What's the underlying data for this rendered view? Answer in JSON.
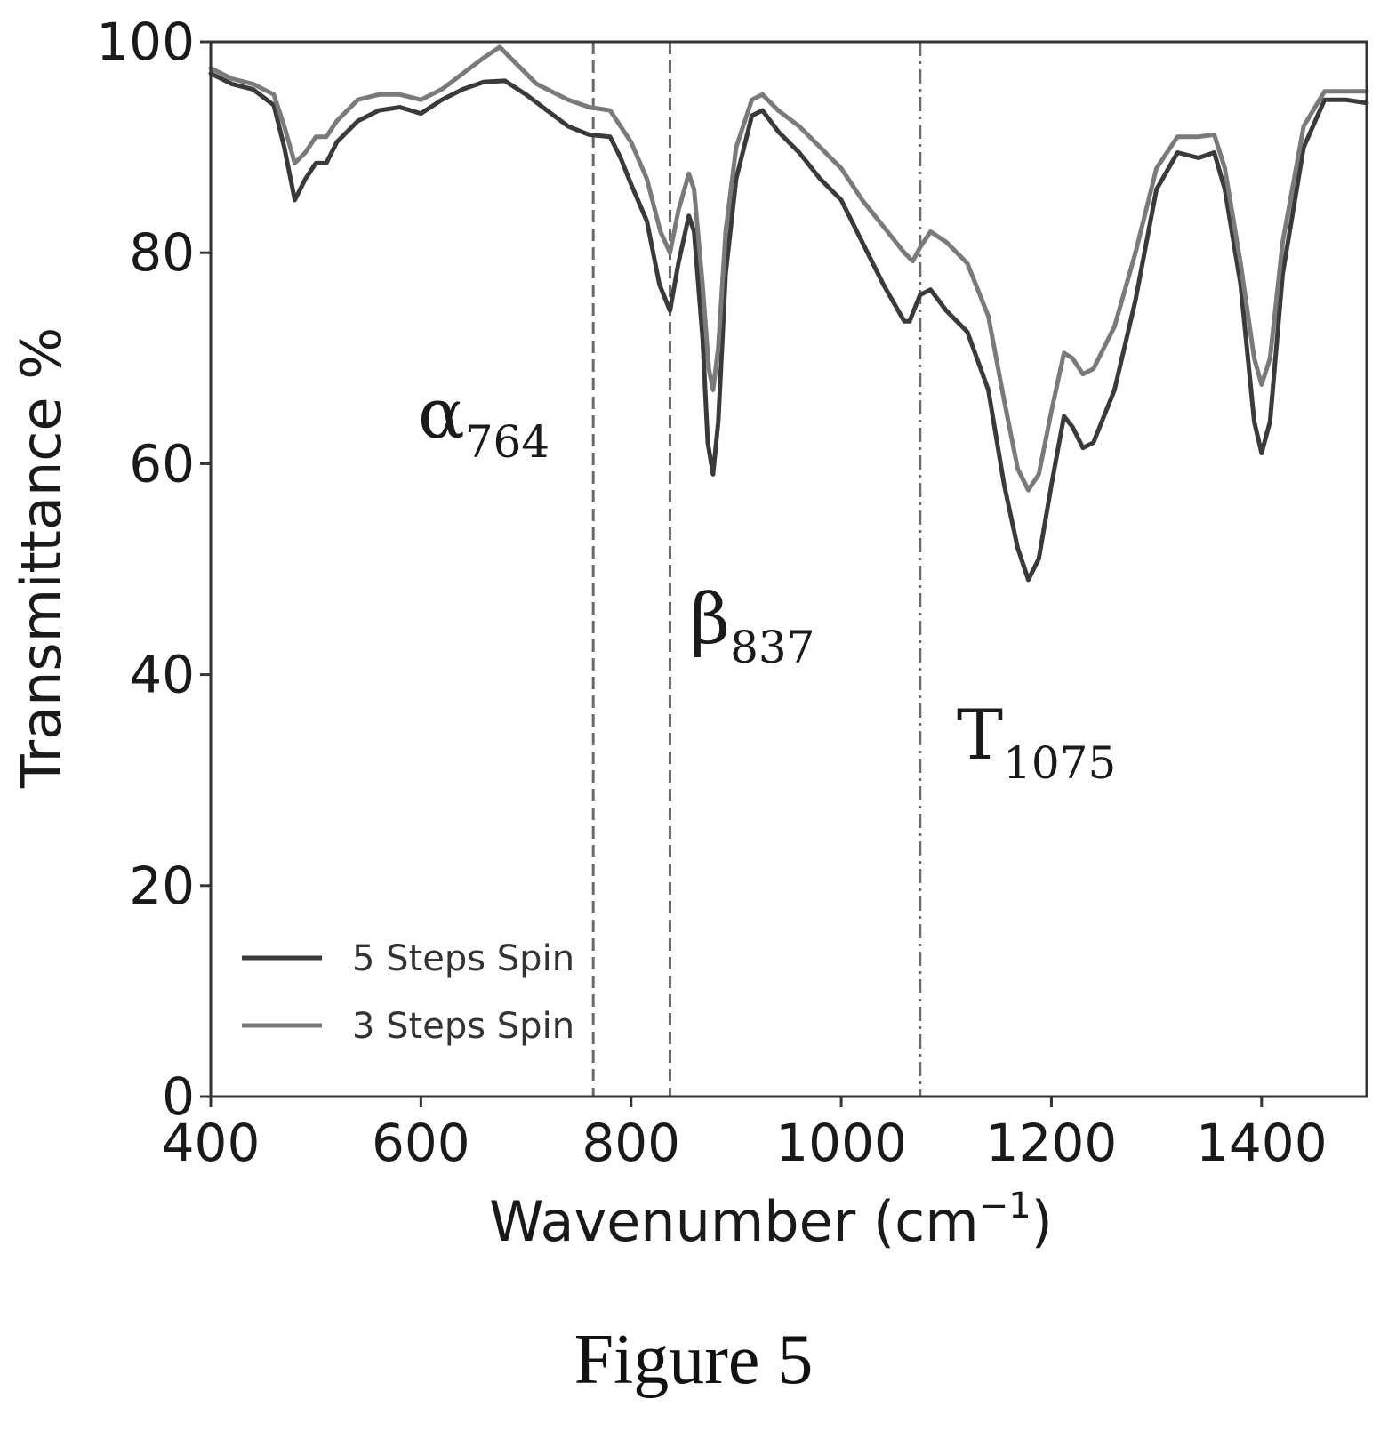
{
  "chart_data": {
    "type": "line",
    "xlabel": "Wavenumber (cm",
    "xlabel_sup": "−1",
    "xlabel_close": ")",
    "ylabel": "Transmittance %",
    "xlim": [
      400,
      1500
    ],
    "ylim": [
      0,
      100
    ],
    "xticks": [
      400,
      600,
      800,
      1000,
      1200,
      1400
    ],
    "yticks": [
      0,
      20,
      40,
      60,
      80,
      100
    ],
    "grid": false,
    "legend_position": "lower-left",
    "series": [
      {
        "name": "5 Steps Spin",
        "color": "#3a3a3a",
        "points": [
          [
            400,
            97
          ],
          [
            420,
            96
          ],
          [
            440,
            95.5
          ],
          [
            460,
            94
          ],
          [
            470,
            90
          ],
          [
            480,
            85
          ],
          [
            490,
            87
          ],
          [
            500,
            88.5
          ],
          [
            510,
            88.5
          ],
          [
            520,
            90.5
          ],
          [
            540,
            92.5
          ],
          [
            560,
            93.5
          ],
          [
            580,
            93.8
          ],
          [
            600,
            93.2
          ],
          [
            620,
            94.5
          ],
          [
            640,
            95.5
          ],
          [
            660,
            96.2
          ],
          [
            680,
            96.3
          ],
          [
            700,
            95
          ],
          [
            720,
            93.5
          ],
          [
            740,
            92
          ],
          [
            760,
            91.2
          ],
          [
            780,
            91
          ],
          [
            790,
            89
          ],
          [
            800,
            86.5
          ],
          [
            815,
            83
          ],
          [
            827,
            77
          ],
          [
            837,
            74.5
          ],
          [
            845,
            79
          ],
          [
            855,
            83.5
          ],
          [
            860,
            82
          ],
          [
            868,
            72
          ],
          [
            873,
            62
          ],
          [
            878,
            59
          ],
          [
            883,
            64
          ],
          [
            890,
            78
          ],
          [
            900,
            87
          ],
          [
            915,
            93
          ],
          [
            925,
            93.5
          ],
          [
            940,
            91.5
          ],
          [
            960,
            89.5
          ],
          [
            980,
            87
          ],
          [
            1000,
            85
          ],
          [
            1020,
            81
          ],
          [
            1040,
            77
          ],
          [
            1060,
            73.5
          ],
          [
            1065,
            73.5
          ],
          [
            1075,
            76
          ],
          [
            1085,
            76.5
          ],
          [
            1100,
            74.5
          ],
          [
            1120,
            72.5
          ],
          [
            1140,
            67
          ],
          [
            1155,
            58
          ],
          [
            1168,
            52
          ],
          [
            1178,
            49
          ],
          [
            1188,
            51
          ],
          [
            1200,
            58
          ],
          [
            1212,
            64.5
          ],
          [
            1220,
            63.5
          ],
          [
            1230,
            61.5
          ],
          [
            1240,
            62
          ],
          [
            1260,
            67
          ],
          [
            1280,
            75.5
          ],
          [
            1300,
            86
          ],
          [
            1320,
            89.5
          ],
          [
            1340,
            89
          ],
          [
            1355,
            89.5
          ],
          [
            1365,
            86
          ],
          [
            1380,
            77
          ],
          [
            1393,
            64
          ],
          [
            1400,
            61
          ],
          [
            1408,
            64
          ],
          [
            1420,
            78
          ],
          [
            1440,
            90
          ],
          [
            1460,
            94.5
          ],
          [
            1480,
            94.5
          ],
          [
            1500,
            94.2
          ]
        ]
      },
      {
        "name": "3 Steps Spin",
        "color": "#7a7a7a",
        "points": [
          [
            400,
            97.5
          ],
          [
            420,
            96.5
          ],
          [
            440,
            96
          ],
          [
            460,
            95
          ],
          [
            470,
            92
          ],
          [
            480,
            88.5
          ],
          [
            490,
            89.5
          ],
          [
            500,
            91
          ],
          [
            510,
            91
          ],
          [
            520,
            92.5
          ],
          [
            540,
            94.5
          ],
          [
            560,
            95
          ],
          [
            580,
            95
          ],
          [
            600,
            94.5
          ],
          [
            620,
            95.5
          ],
          [
            640,
            97
          ],
          [
            660,
            98.5
          ],
          [
            675,
            99.5
          ],
          [
            690,
            98
          ],
          [
            710,
            96
          ],
          [
            740,
            94.5
          ],
          [
            760,
            93.8
          ],
          [
            780,
            93.5
          ],
          [
            790,
            92
          ],
          [
            800,
            90.5
          ],
          [
            815,
            87
          ],
          [
            828,
            82
          ],
          [
            837,
            80
          ],
          [
            845,
            84
          ],
          [
            855,
            87.5
          ],
          [
            860,
            86
          ],
          [
            868,
            77
          ],
          [
            874,
            69
          ],
          [
            878,
            67
          ],
          [
            883,
            71
          ],
          [
            890,
            82
          ],
          [
            900,
            90
          ],
          [
            915,
            94.5
          ],
          [
            925,
            95
          ],
          [
            940,
            93.5
          ],
          [
            960,
            92
          ],
          [
            980,
            90
          ],
          [
            1000,
            88
          ],
          [
            1020,
            85
          ],
          [
            1040,
            82.5
          ],
          [
            1060,
            80
          ],
          [
            1068,
            79.2
          ],
          [
            1075,
            80.5
          ],
          [
            1085,
            82
          ],
          [
            1100,
            81
          ],
          [
            1120,
            79
          ],
          [
            1140,
            74
          ],
          [
            1155,
            66
          ],
          [
            1168,
            59.5
          ],
          [
            1178,
            57.5
          ],
          [
            1188,
            59
          ],
          [
            1200,
            65
          ],
          [
            1212,
            70.5
          ],
          [
            1220,
            70
          ],
          [
            1230,
            68.5
          ],
          [
            1240,
            69
          ],
          [
            1260,
            73
          ],
          [
            1280,
            80
          ],
          [
            1300,
            88
          ],
          [
            1320,
            91
          ],
          [
            1340,
            91
          ],
          [
            1355,
            91.2
          ],
          [
            1365,
            88
          ],
          [
            1380,
            79
          ],
          [
            1393,
            70
          ],
          [
            1400,
            67.5
          ],
          [
            1408,
            70
          ],
          [
            1420,
            81
          ],
          [
            1440,
            92
          ],
          [
            1460,
            95.3
          ],
          [
            1480,
            95.3
          ],
          [
            1500,
            95.3
          ]
        ]
      }
    ],
    "reference_lines": [
      {
        "x": 764,
        "style": "dashed",
        "symbol": "α",
        "subscript": "764"
      },
      {
        "x": 837,
        "style": "dashed",
        "symbol": "β",
        "subscript": "837"
      },
      {
        "x": 1075,
        "style": "dashdot",
        "symbol": "T",
        "subscript": "1075"
      }
    ]
  },
  "caption": "Figure 5"
}
